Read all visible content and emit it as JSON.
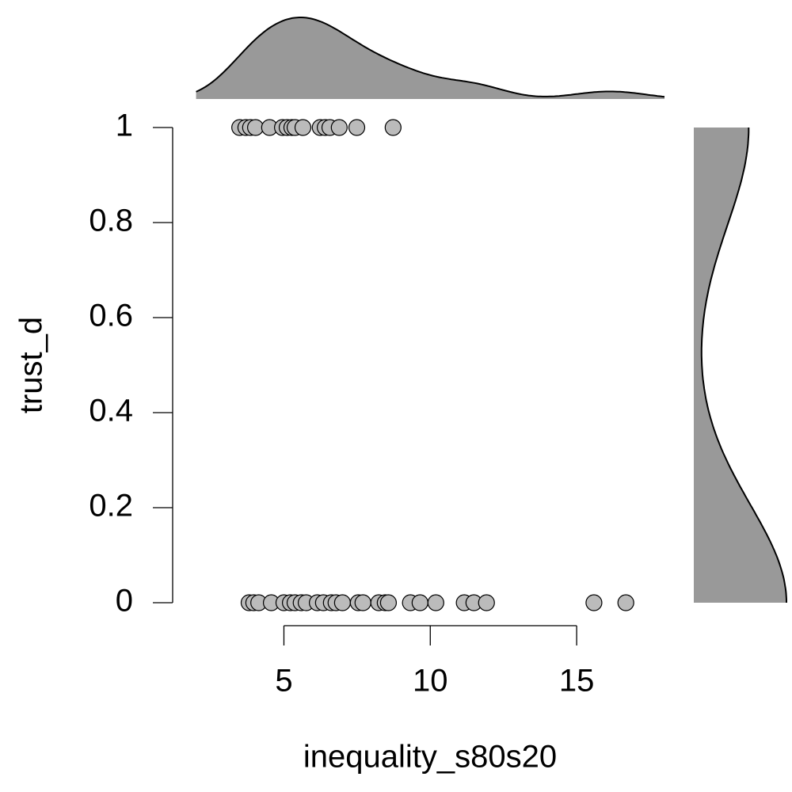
{
  "chart_data": {
    "type": "scatter",
    "xlabel": "inequality_s80s20",
    "ylabel": "trust_d",
    "x": [
      3.49,
      3.7,
      3.86,
      4.03,
      4.51,
      4.95,
      5.11,
      5.27,
      5.38,
      5.65,
      6.24,
      6.41,
      6.57,
      6.89,
      7.49,
      8.73,
      3.81,
      3.97,
      4.14,
      4.57,
      5.0,
      5.22,
      5.38,
      5.59,
      5.76,
      6.14,
      6.35,
      6.62,
      6.78,
      7.0,
      7.54,
      7.7,
      8.24,
      8.46,
      8.57,
      9.32,
      9.65,
      10.19,
      11.16,
      11.49,
      11.92,
      15.59,
      16.68
    ],
    "values": [
      1,
      1,
      1,
      1,
      1,
      1,
      1,
      1,
      1,
      1,
      1,
      1,
      1,
      1,
      1,
      1,
      0,
      0,
      0,
      0,
      0,
      0,
      0,
      0,
      0,
      0,
      0,
      0,
      0,
      0,
      0,
      0,
      0,
      0,
      0,
      0,
      0,
      0,
      0,
      0,
      0,
      0,
      0
    ],
    "color": "#bbbbbb",
    "density_color": "#999999",
    "xlim": [
      1.2,
      18
    ],
    "ylim": [
      -0.05,
      1.05
    ],
    "xticks": [
      5,
      10,
      15
    ],
    "yticks": [
      0,
      0.2,
      0.4,
      0.6,
      0.8,
      1
    ]
  }
}
